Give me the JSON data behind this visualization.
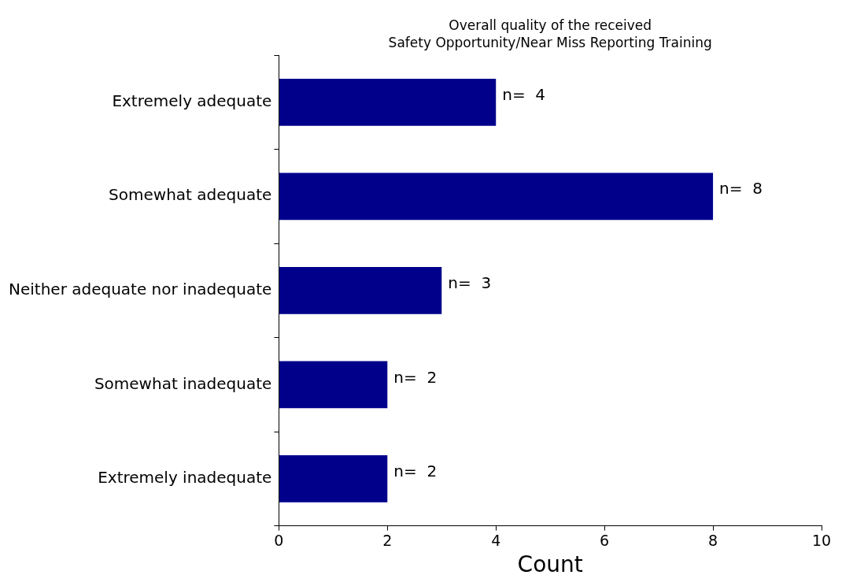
{
  "chart_data": {
    "type": "bar",
    "orientation": "horizontal",
    "title": "Overall quality of the received\nSafety Opportunity/Near Miss Reporting Training",
    "xlabel": "Count",
    "categories": [
      "Extremely adequate",
      "Somewhat adequate",
      "Neither adequate nor inadequate",
      "Somewhat inadequate",
      "Extremely inadequate"
    ],
    "values": [
      4,
      8,
      3,
      2,
      2
    ],
    "value_labels": [
      "n=  4",
      "n=  8",
      "n=  3",
      "n=  2",
      "n=  2"
    ],
    "color": "#00008b",
    "xlim": [
      0,
      10
    ],
    "xticks": [
      0,
      2,
      4,
      6,
      8,
      10
    ],
    "grid": false,
    "legend": false
  }
}
